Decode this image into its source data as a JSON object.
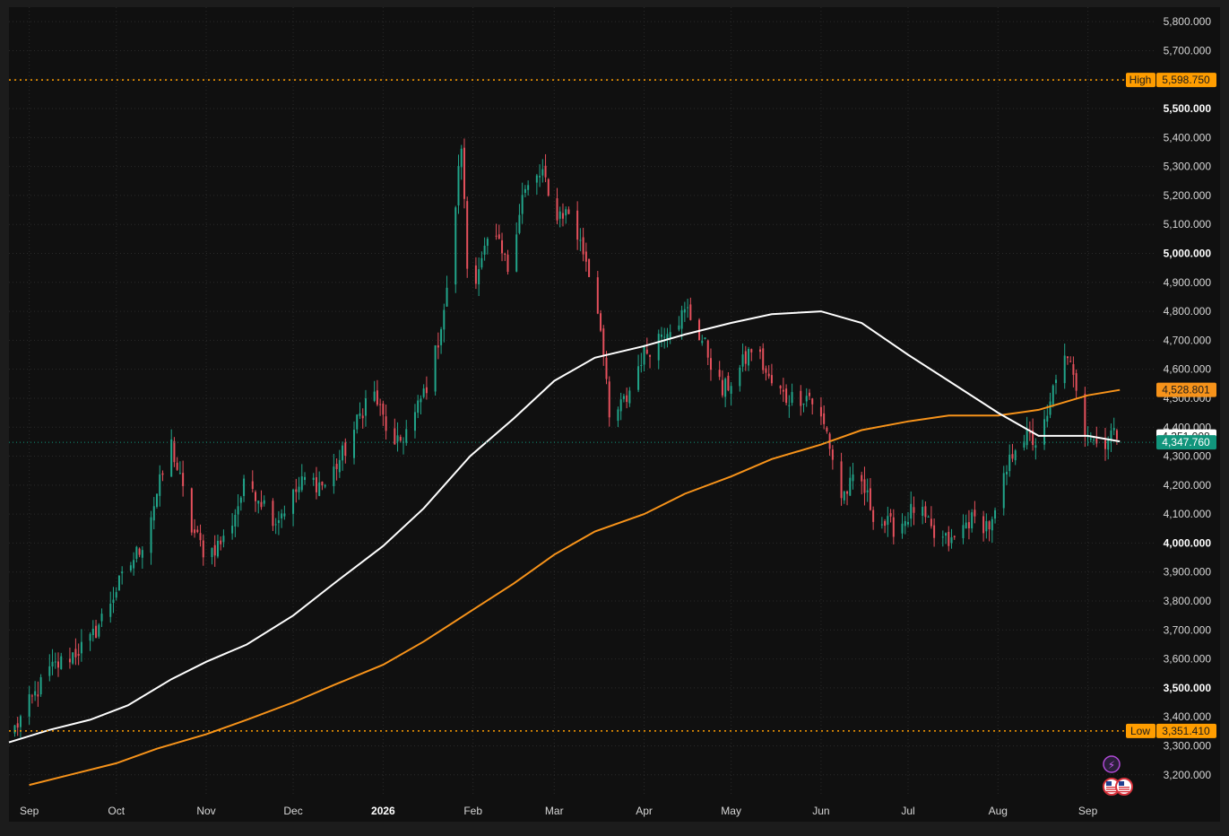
{
  "chart_data": {
    "type": "candlestick",
    "x_labels": [
      {
        "label": "Sep",
        "date": "2025-09-01"
      },
      {
        "label": "Oct",
        "date": "2025-10-01"
      },
      {
        "label": "Nov",
        "date": "2025-11-01"
      },
      {
        "label": "Dec",
        "date": "2025-12-01"
      },
      {
        "label": "2026",
        "date": "2026-01-01",
        "bold": true
      },
      {
        "label": "Feb",
        "date": "2026-02-01"
      },
      {
        "label": "Mar",
        "date": "2026-03-01"
      },
      {
        "label": "Apr",
        "date": "2026-04-01"
      },
      {
        "label": "May",
        "date": "2026-05-01"
      },
      {
        "label": "Jun",
        "date": "2026-06-01"
      },
      {
        "label": "Jul",
        "date": "2026-07-01"
      },
      {
        "label": "Aug",
        "date": "2026-08-01"
      },
      {
        "label": "Sep",
        "date": "2026-09-01"
      }
    ],
    "y_ticks": [
      "3,200.000",
      "3,300.000",
      "3,400.000",
      "3,500.000",
      "3,600.000",
      "3,700.000",
      "3,800.000",
      "3,900.000",
      "4,000.000",
      "4,100.000",
      "4,200.000",
      "4,300.000",
      "4,400.000",
      "4,500.000",
      "4,600.000",
      "4,700.000",
      "4,800.000",
      "4,900.000",
      "5,000.000",
      "5,100.000",
      "5,200.000",
      "5,300.000",
      "5,400.000",
      "5,500.000",
      "5,600.000",
      "5,700.000",
      "5,800.000"
    ],
    "y_bold_ticks": [
      "3,500.000",
      "4,000.000",
      "5,000.000",
      "5,500.000"
    ],
    "ylim": [
      3125,
      5850
    ],
    "xlim": [
      "2025-08-25",
      "2026-09-24"
    ],
    "high": {
      "label": "High",
      "value": 5598.75,
      "text": "5,598.750"
    },
    "low": {
      "label": "Low",
      "value": 3351.41,
      "text": "3,351.410"
    },
    "last_price": {
      "value": 4347.76,
      "text": "4,347.760"
    },
    "ma_fast_last": {
      "value": 4351.008,
      "text": "4,351.008"
    },
    "ma_slow_last": {
      "value": 4528.801,
      "text": "4,528.801"
    },
    "anchors": [
      [
        "2025-08-27",
        3360
      ],
      [
        "2025-09-08",
        3560
      ],
      [
        "2025-09-22",
        3660
      ],
      [
        "2025-10-01",
        3840
      ],
      [
        "2025-10-10",
        4000
      ],
      [
        "2025-10-20",
        4340
      ],
      [
        "2025-10-27",
        4050
      ],
      [
        "2025-11-01",
        3960
      ],
      [
        "2025-11-08",
        4020
      ],
      [
        "2025-11-15",
        4220
      ],
      [
        "2025-11-25",
        4080
      ],
      [
        "2025-12-05",
        4220
      ],
      [
        "2025-12-12",
        4200
      ],
      [
        "2025-12-20",
        4340
      ],
      [
        "2025-12-28",
        4540
      ],
      [
        "2026-01-05",
        4320
      ],
      [
        "2026-01-12",
        4440
      ],
      [
        "2026-01-18",
        4600
      ],
      [
        "2026-01-23",
        4860
      ],
      [
        "2026-01-28",
        5380
      ],
      [
        "2026-01-31",
        4740
      ],
      [
        "2026-02-03",
        4980
      ],
      [
        "2026-02-08",
        5060
      ],
      [
        "2026-02-13",
        4950
      ],
      [
        "2026-02-18",
        5200
      ],
      [
        "2026-02-25",
        5280
      ],
      [
        "2026-02-28",
        5140
      ],
      [
        "2026-03-06",
        5140
      ],
      [
        "2026-03-12",
        4980
      ],
      [
        "2026-03-17",
        4760
      ],
      [
        "2026-03-20",
        4420
      ],
      [
        "2026-03-26",
        4500
      ],
      [
        "2026-03-31",
        4640
      ],
      [
        "2026-04-08",
        4740
      ],
      [
        "2026-04-16",
        4800
      ],
      [
        "2026-04-22",
        4680
      ],
      [
        "2026-04-28",
        4520
      ],
      [
        "2026-05-04",
        4600
      ],
      [
        "2026-05-09",
        4690
      ],
      [
        "2026-05-14",
        4560
      ],
      [
        "2026-05-20",
        4500
      ],
      [
        "2026-05-28",
        4510
      ],
      [
        "2026-06-03",
        4380
      ],
      [
        "2026-06-08",
        4160
      ],
      [
        "2026-06-14",
        4230
      ],
      [
        "2026-06-20",
        4080
      ],
      [
        "2026-06-27",
        4050
      ],
      [
        "2026-07-04",
        4130
      ],
      [
        "2026-07-10",
        4020
      ],
      [
        "2026-07-16",
        4000
      ],
      [
        "2026-07-22",
        4080
      ],
      [
        "2026-07-30",
        4060
      ],
      [
        "2026-08-03",
        4210
      ],
      [
        "2026-08-08",
        4380
      ],
      [
        "2026-08-14",
        4350
      ],
      [
        "2026-08-18",
        4420
      ],
      [
        "2026-08-22",
        4640
      ],
      [
        "2026-08-27",
        4600
      ],
      [
        "2026-08-31",
        4400
      ],
      [
        "2026-09-05",
        4330
      ],
      [
        "2026-09-09",
        4380
      ],
      [
        "2026-09-12",
        4347.76
      ]
    ],
    "ma_fast_path": [
      [
        "2025-08-25",
        3312
      ],
      [
        "2025-09-08",
        3355
      ],
      [
        "2025-09-22",
        3390
      ],
      [
        "2025-10-05",
        3440
      ],
      [
        "2025-10-20",
        3530
      ],
      [
        "2025-11-01",
        3590
      ],
      [
        "2025-11-15",
        3650
      ],
      [
        "2025-12-01",
        3750
      ],
      [
        "2025-12-15",
        3860
      ],
      [
        "2026-01-01",
        3990
      ],
      [
        "2026-01-15",
        4120
      ],
      [
        "2026-01-31",
        4300
      ],
      [
        "2026-02-15",
        4430
      ],
      [
        "2026-03-01",
        4560
      ],
      [
        "2026-03-15",
        4640
      ],
      [
        "2026-04-01",
        4680
      ],
      [
        "2026-04-15",
        4720
      ],
      [
        "2026-05-01",
        4760
      ],
      [
        "2026-05-15",
        4790
      ],
      [
        "2026-06-01",
        4800
      ],
      [
        "2026-06-15",
        4760
      ],
      [
        "2026-07-01",
        4650
      ],
      [
        "2026-07-15",
        4560
      ],
      [
        "2026-08-01",
        4450
      ],
      [
        "2026-08-15",
        4370
      ],
      [
        "2026-09-01",
        4370
      ],
      [
        "2026-09-12",
        4351.008
      ]
    ],
    "ma_slow_path": [
      [
        "2025-09-01",
        3165
      ],
      [
        "2025-09-15",
        3200
      ],
      [
        "2025-10-01",
        3240
      ],
      [
        "2025-10-15",
        3290
      ],
      [
        "2025-11-01",
        3340
      ],
      [
        "2025-11-15",
        3390
      ],
      [
        "2025-12-01",
        3450
      ],
      [
        "2025-12-15",
        3510
      ],
      [
        "2026-01-01",
        3580
      ],
      [
        "2026-01-15",
        3660
      ],
      [
        "2026-02-01",
        3770
      ],
      [
        "2026-02-15",
        3860
      ],
      [
        "2026-03-01",
        3960
      ],
      [
        "2026-03-15",
        4040
      ],
      [
        "2026-04-01",
        4100
      ],
      [
        "2026-04-15",
        4170
      ],
      [
        "2026-05-01",
        4230
      ],
      [
        "2026-05-15",
        4290
      ],
      [
        "2026-06-01",
        4340
      ],
      [
        "2026-06-15",
        4390
      ],
      [
        "2026-07-01",
        4420
      ],
      [
        "2026-07-15",
        4440
      ],
      [
        "2026-08-01",
        4440
      ],
      [
        "2026-08-15",
        4460
      ],
      [
        "2026-09-01",
        4510
      ],
      [
        "2026-09-12",
        4528.801
      ]
    ],
    "grid": true,
    "colors": {
      "background": "#1c1c1c",
      "plot_background": "#101010",
      "up": "#21a58a",
      "down": "#e5505c",
      "ma_fast": "#ffffff",
      "ma_slow": "#f7931a",
      "high_low": "#ff9d00",
      "last_price_bg": "#11957c",
      "grid": "#2a2a2a",
      "axis_text": "#d6d6d6"
    },
    "icons": [
      "lightning-icon",
      "us-flag-event-icon"
    ]
  }
}
